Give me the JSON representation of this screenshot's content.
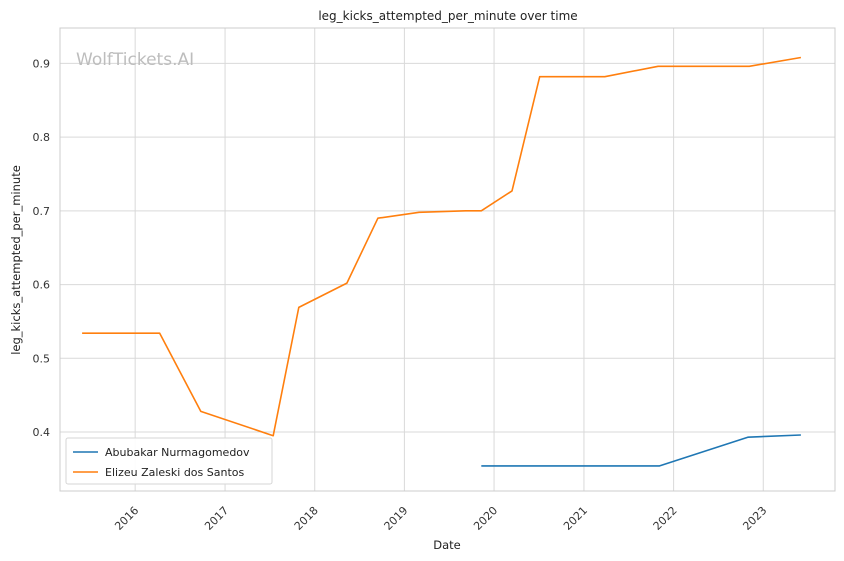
{
  "chart_data": {
    "type": "line",
    "title": "leg_kicks_attempted_per_minute over time",
    "xlabel": "Date",
    "ylabel": "leg_kicks_attempted_per_minute",
    "watermark": "WolfTickets.AI",
    "x_ticks": [
      "2016",
      "2017",
      "2018",
      "2019",
      "2020",
      "2021",
      "2022",
      "2023"
    ],
    "y_ticks": [
      "0.4",
      "0.5",
      "0.6",
      "0.7",
      "0.8",
      "0.9"
    ],
    "xlim": [
      "2015-03-01",
      "2023-10-20"
    ],
    "ylim": [
      0.32,
      0.948
    ],
    "grid": true,
    "legend_position": "lower-left",
    "series": [
      {
        "name": "Abubakar Nurmagomedov",
        "color": "#1f77b4",
        "points": [
          {
            "x": "2019-11-10",
            "y": 0.354
          },
          {
            "x": "2021-11-05",
            "y": 0.354
          },
          {
            "x": "2022-10-30",
            "y": 0.393
          },
          {
            "x": "2023-06-03",
            "y": 0.396
          }
        ]
      },
      {
        "name": "Elizeu Zaleski dos Santos",
        "color": "#ff7f0e",
        "points": [
          {
            "x": "2015-05-30",
            "y": 0.534
          },
          {
            "x": "2016-04-10",
            "y": 0.534
          },
          {
            "x": "2016-09-24",
            "y": 0.428
          },
          {
            "x": "2017-07-16",
            "y": 0.395
          },
          {
            "x": "2017-10-28",
            "y": 0.569
          },
          {
            "x": "2018-05-12",
            "y": 0.602
          },
          {
            "x": "2018-09-15",
            "y": 0.69
          },
          {
            "x": "2019-03-02",
            "y": 0.698
          },
          {
            "x": "2019-09-07",
            "y": 0.7
          },
          {
            "x": "2019-11-10",
            "y": 0.7
          },
          {
            "x": "2020-03-14",
            "y": 0.727
          },
          {
            "x": "2020-07-05",
            "y": 0.882
          },
          {
            "x": "2021-03-27",
            "y": 0.882
          },
          {
            "x": "2021-10-30",
            "y": 0.896
          },
          {
            "x": "2022-11-05",
            "y": 0.896
          },
          {
            "x": "2023-06-03",
            "y": 0.908
          }
        ]
      }
    ]
  }
}
